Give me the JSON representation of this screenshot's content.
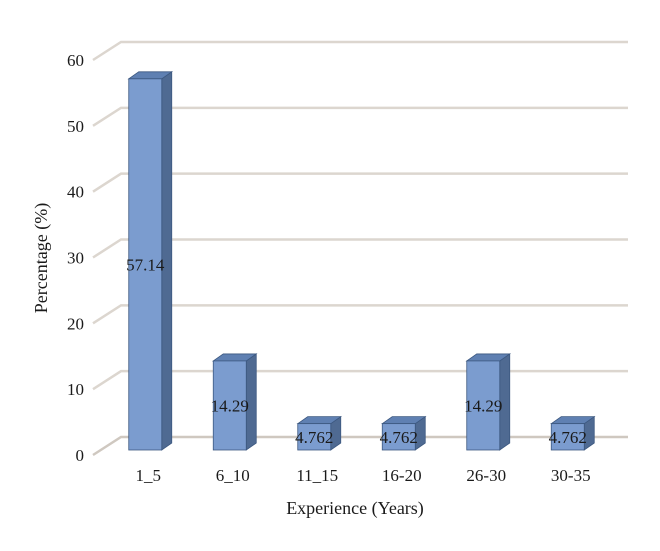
{
  "chart_data": {
    "type": "bar",
    "categories": [
      "1_5",
      "6_10",
      "11_15",
      "16-20",
      "26-30",
      "30-35"
    ],
    "values": [
      57.14,
      14.29,
      4.762,
      4.762,
      14.29,
      4.762
    ],
    "value_labels": [
      "57.14",
      "14.29",
      "4.762",
      "4.762",
      "14.29",
      "4.762"
    ],
    "title": "",
    "xlabel": "Experience (Years)",
    "ylabel": "Percentage (%)",
    "ylim": [
      0,
      60
    ],
    "yticks": [
      0,
      10,
      20,
      30,
      40,
      50,
      60
    ],
    "grid": true,
    "style": "3d-column",
    "colors": {
      "bar_front": "#7b9ccf",
      "bar_side": "#4f6a92",
      "bar_top": "#5f80b2",
      "bar_edge": "#3c5880",
      "gridline": "#dcd6cf",
      "floor": "#cfc8c0"
    }
  }
}
